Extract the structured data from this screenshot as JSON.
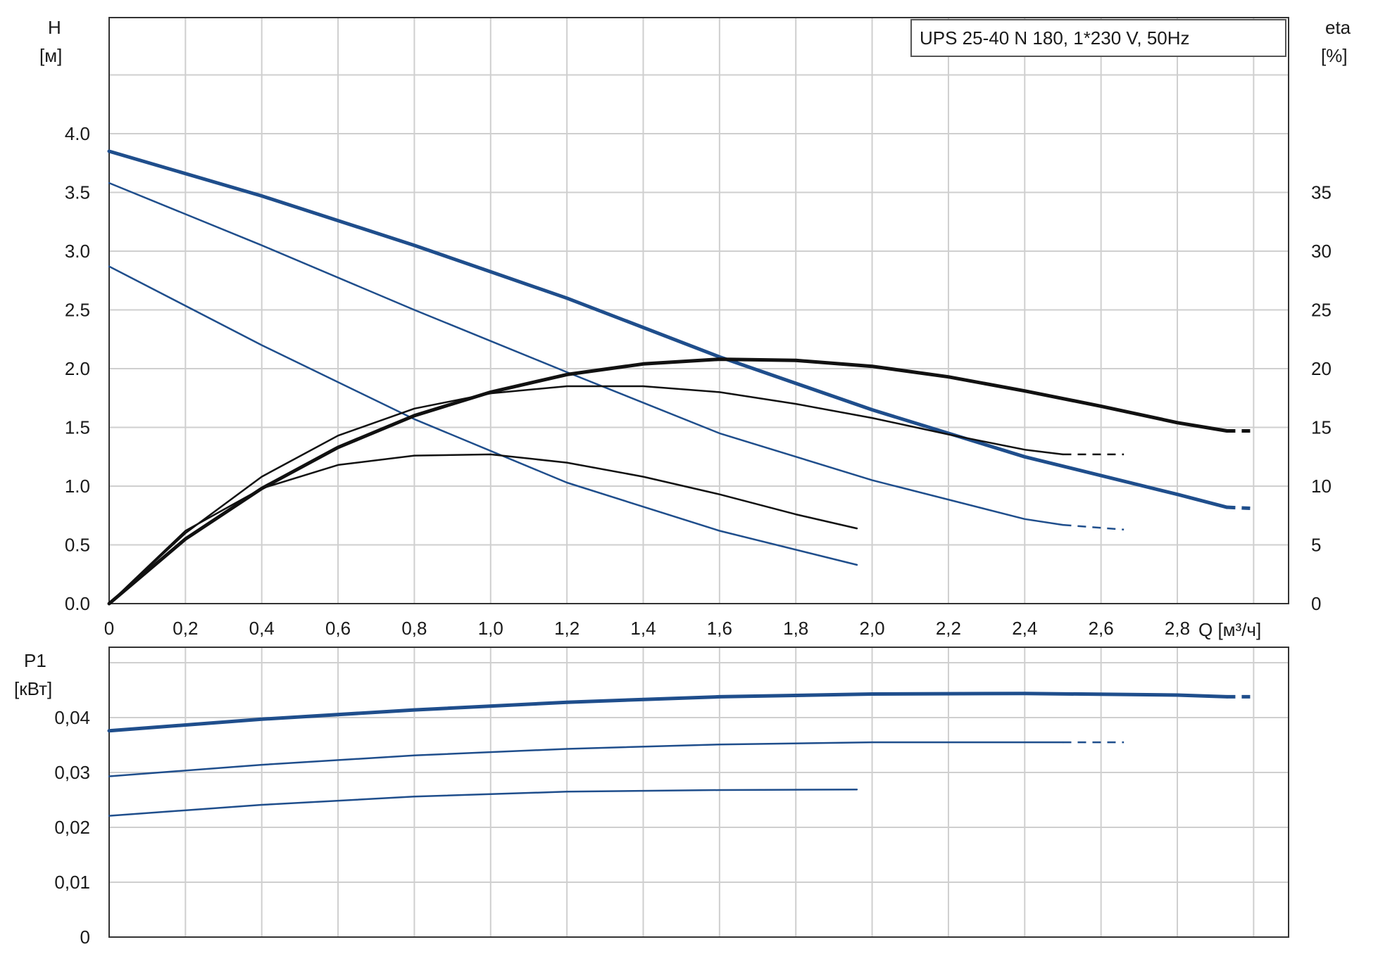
{
  "model_label": "UPS 25-40 N 180, 1*230 V, 50Hz",
  "colors": {
    "head": "#1f4e8c",
    "eta": "#111111",
    "power": "#1f4e8c",
    "grid": "#cfcfcf"
  },
  "chart_data": [
    {
      "type": "line",
      "title": "UPS 25-40 N 180, 1*230 V, 50Hz",
      "xlabel": "Q [м³/ч]",
      "ylabel": "H",
      "ylabel_unit": "[м]",
      "y2label": "eta",
      "y2label_unit": "[%]",
      "xlim": [
        0,
        3.0
      ],
      "ylim": [
        0,
        4.0
      ],
      "y2lim": [
        0,
        40
      ],
      "grid": true,
      "x_ticks": [
        "0",
        "0,2",
        "0,4",
        "0,6",
        "0,8",
        "1,0",
        "1,2",
        "1,4",
        "1,6",
        "1,8",
        "2,0",
        "2,2",
        "2,4",
        "2,6",
        "2,8"
      ],
      "y_ticks": [
        "0.0",
        "0.5",
        "1.0",
        "1.5",
        "2.0",
        "2.5",
        "3.0",
        "3.5",
        "4.0"
      ],
      "y2_ticks": [
        "0",
        "5",
        "10",
        "15",
        "20",
        "25",
        "30",
        "35"
      ],
      "series": [
        {
          "axis": "y",
          "role": "head",
          "weight": 5,
          "x": [
            0,
            0.4,
            0.8,
            1.2,
            1.6,
            2.0,
            2.4,
            2.8,
            2.93
          ],
          "y": [
            3.85,
            3.47,
            3.05,
            2.6,
            2.1,
            1.65,
            1.25,
            0.93,
            0.82
          ],
          "dashed_to": [
            3.0,
            0.81
          ]
        },
        {
          "axis": "y",
          "role": "head",
          "weight": 2.5,
          "x": [
            0,
            0.4,
            0.8,
            1.2,
            1.6,
            2.0,
            2.4,
            2.5
          ],
          "y": [
            3.58,
            3.05,
            2.5,
            1.97,
            1.45,
            1.05,
            0.72,
            0.67
          ],
          "dashed_to": [
            2.66,
            0.63
          ]
        },
        {
          "axis": "y",
          "role": "head",
          "weight": 2.5,
          "x": [
            0,
            0.4,
            0.8,
            1.2,
            1.6,
            1.96
          ],
          "y": [
            2.87,
            2.2,
            1.57,
            1.03,
            0.62,
            0.33
          ]
        },
        {
          "axis": "y2",
          "role": "eta",
          "weight": 5,
          "x": [
            0,
            0.2,
            0.4,
            0.6,
            0.8,
            1.0,
            1.2,
            1.4,
            1.6,
            1.8,
            2.0,
            2.2,
            2.4,
            2.6,
            2.8,
            2.93
          ],
          "y": [
            0,
            5.5,
            9.8,
            13.3,
            16.0,
            18.0,
            19.5,
            20.4,
            20.8,
            20.7,
            20.2,
            19.3,
            18.1,
            16.8,
            15.4,
            14.7
          ],
          "dashed_to": [
            3.0,
            14.7
          ]
        },
        {
          "axis": "y2",
          "role": "eta",
          "weight": 2.5,
          "x": [
            0,
            0.2,
            0.4,
            0.6,
            0.8,
            1.0,
            1.2,
            1.4,
            1.6,
            1.8,
            2.0,
            2.2,
            2.4,
            2.5
          ],
          "y": [
            0,
            6.0,
            10.8,
            14.3,
            16.6,
            17.9,
            18.5,
            18.5,
            18.0,
            17.0,
            15.8,
            14.4,
            13.1,
            12.7
          ],
          "dashed_to": [
            2.66,
            12.7
          ]
        },
        {
          "axis": "y2",
          "role": "eta",
          "weight": 2.5,
          "x": [
            0,
            0.2,
            0.4,
            0.6,
            0.8,
            1.0,
            1.2,
            1.4,
            1.6,
            1.8,
            1.96
          ],
          "y": [
            0,
            6.2,
            9.8,
            11.8,
            12.6,
            12.7,
            12.0,
            10.8,
            9.3,
            7.6,
            6.4
          ]
        }
      ]
    },
    {
      "type": "line",
      "ylabel": "P1",
      "ylabel_unit": "[кВт]",
      "xlim": [
        0,
        3.0
      ],
      "ylim": [
        0,
        0.05
      ],
      "grid": true,
      "y_ticks": [
        "0",
        "0,01",
        "0,02",
        "0,03",
        "0,04"
      ],
      "series": [
        {
          "weight": 5,
          "x": [
            0,
            0.4,
            0.8,
            1.2,
            1.6,
            2.0,
            2.4,
            2.8,
            2.93
          ],
          "y": [
            0.0376,
            0.0397,
            0.0414,
            0.0428,
            0.0438,
            0.0443,
            0.0444,
            0.0441,
            0.0438
          ],
          "dashed_to": [
            3.0,
            0.0438
          ]
        },
        {
          "weight": 2.5,
          "x": [
            0,
            0.4,
            0.8,
            1.2,
            1.6,
            2.0,
            2.4,
            2.5
          ],
          "y": [
            0.0293,
            0.0314,
            0.0331,
            0.0343,
            0.0351,
            0.0355,
            0.0355,
            0.0355
          ],
          "dashed_to": [
            2.66,
            0.0355
          ]
        },
        {
          "weight": 2.5,
          "x": [
            0,
            0.4,
            0.8,
            1.2,
            1.6,
            1.96
          ],
          "y": [
            0.0221,
            0.0241,
            0.0256,
            0.0265,
            0.0268,
            0.0269
          ]
        }
      ]
    }
  ]
}
